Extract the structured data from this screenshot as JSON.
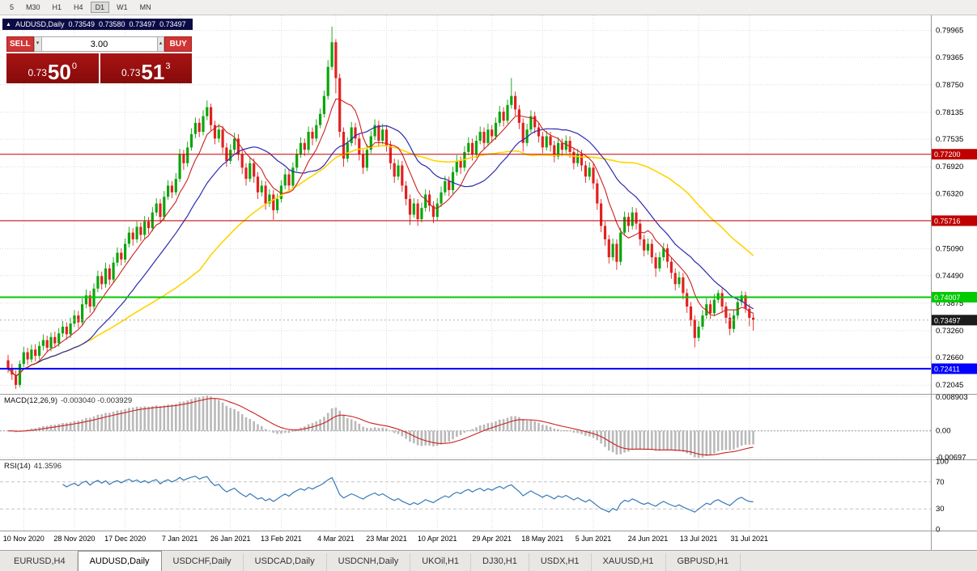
{
  "toolbar": {
    "periods": [
      {
        "label": "5",
        "active": false
      },
      {
        "label": "M30",
        "active": false
      },
      {
        "label": "H1",
        "active": false
      },
      {
        "label": "H4",
        "active": false
      },
      {
        "label": "D1",
        "active": true
      },
      {
        "label": "W1",
        "active": false
      },
      {
        "label": "MN",
        "active": false
      }
    ]
  },
  "chart": {
    "symbol": "AUDUSD,Daily",
    "open": "0.73549",
    "high": "0.73580",
    "low": "0.73497",
    "close": "0.73497"
  },
  "icons": {
    "title_arrow": "▲",
    "vol_down": "▾",
    "vol_up": "▴"
  },
  "trade_panel": {
    "sell_label": "SELL",
    "buy_label": "BUY",
    "volume": "3.00",
    "sell_price_main": "0.73",
    "sell_price_big": "50",
    "sell_price_sup": "0",
    "buy_price_main": "0.73",
    "buy_price_big": "51",
    "buy_price_sup": "3"
  },
  "price_axis": [
    "0.79965",
    "0.79365",
    "0.78750",
    "0.78135",
    "0.77535",
    "0.76920",
    "0.76320",
    "0.75705",
    "0.75090",
    "0.74490",
    "0.73875",
    "0.73260",
    "0.72660",
    "0.72045"
  ],
  "hlines": [
    {
      "price": 0.772,
      "label": "0.77200",
      "color": "#c00000",
      "width": 1
    },
    {
      "price": 0.75716,
      "label": "0.75716",
      "color": "#c00000",
      "width": 1
    },
    {
      "price": 0.74007,
      "label": "0.74007",
      "color": "#00ca00",
      "width": 2
    },
    {
      "price": 0.72411,
      "label": "0.72411",
      "color": "#0000ff",
      "width": 2
    }
  ],
  "current_price": {
    "price": 0.73497,
    "label": "0.73497",
    "box_color": "#1c1c1c"
  },
  "macd": {
    "title": "MACD(12,26,9)",
    "values": "-0.003040 -0.003929",
    "params": [
      12,
      26,
      9
    ],
    "axis": [
      {
        "text": "0.008903",
        "value": 0.008903
      },
      {
        "text": "0.00",
        "value": 0
      },
      {
        "text": "-0.00697",
        "value": -0.00697
      }
    ]
  },
  "rsi": {
    "title": "RSI(14)",
    "value": "41.3596",
    "period": 14,
    "levels": [
      70,
      30
    ],
    "axis": [
      {
        "text": "100",
        "value": 100
      },
      {
        "text": "70",
        "value": 70
      },
      {
        "text": "30",
        "value": 30
      },
      {
        "text": "0",
        "value": 0
      }
    ]
  },
  "colors": {
    "up": "#0ba50b",
    "down": "#e22020",
    "ma_fast": "#cc2020",
    "ma_mid": "#2c2cb0",
    "ma_slow": "#ffd400",
    "macd_hist": "#b9b9b9",
    "macd_signal": "#cc2020",
    "rsi_line": "#3579b8"
  },
  "tabs": [
    {
      "label": "EURUSD,H4",
      "active": false
    },
    {
      "label": "AUDUSD,Daily",
      "active": true
    },
    {
      "label": "USDCHF,Daily",
      "active": false
    },
    {
      "label": "USDCAD,Daily",
      "active": false
    },
    {
      "label": "USDCNH,Daily",
      "active": false
    },
    {
      "label": "UKOil,H1",
      "active": false
    },
    {
      "label": "DJ30,H1",
      "active": false
    },
    {
      "label": "USDX,H1",
      "active": false
    },
    {
      "label": "XAUUSD,H1",
      "active": false
    },
    {
      "label": "GBPUSD,H1",
      "active": false
    }
  ],
  "chart_data": {
    "type": "candlestick",
    "symbol": "AUDUSD",
    "timeframe": "Daily",
    "y_range": [
      0.7185,
      0.803
    ],
    "ma_periods": {
      "fast": 8,
      "mid": 21,
      "slow": 50
    },
    "x_ticks": [
      {
        "label": "10 Nov 2020",
        "day": 4
      },
      {
        "label": "28 Nov 2020",
        "day": 17
      },
      {
        "label": "17 Dec 2020",
        "day": 30
      },
      {
        "label": "7 Jan 2021",
        "day": 44
      },
      {
        "label": "26 Jan 2021",
        "day": 57
      },
      {
        "label": "13 Feb 2021",
        "day": 70
      },
      {
        "label": "4 Mar 2021",
        "day": 84
      },
      {
        "label": "23 Mar 2021",
        "day": 97
      },
      {
        "label": "10 Apr 2021",
        "day": 110
      },
      {
        "label": "29 Apr 2021",
        "day": 124
      },
      {
        "label": "18 May 2021",
        "day": 137
      },
      {
        "label": "5 Jun 2021",
        "day": 150
      },
      {
        "label": "24 Jun 2021",
        "day": 164
      },
      {
        "label": "13 Jul 2021",
        "day": 177
      },
      {
        "label": "31 Jul 2021",
        "day": 190
      }
    ],
    "candles": [
      [
        0.726,
        0.7272,
        0.7232,
        0.724
      ],
      [
        0.724,
        0.7252,
        0.7216,
        0.7228
      ],
      [
        0.7228,
        0.7238,
        0.7196,
        0.7205
      ],
      [
        0.7205,
        0.726,
        0.72,
        0.7252
      ],
      [
        0.7252,
        0.729,
        0.7245,
        0.7278
      ],
      [
        0.7278,
        0.7288,
        0.725,
        0.7262
      ],
      [
        0.7262,
        0.7295,
        0.7255,
        0.7284
      ],
      [
        0.7284,
        0.7296,
        0.7258,
        0.727
      ],
      [
        0.727,
        0.7302,
        0.7262,
        0.7292
      ],
      [
        0.7292,
        0.7318,
        0.7282,
        0.7305
      ],
      [
        0.7305,
        0.7315,
        0.7278,
        0.7288
      ],
      [
        0.7288,
        0.7322,
        0.728,
        0.7312
      ],
      [
        0.7312,
        0.7324,
        0.7288,
        0.7298
      ],
      [
        0.7298,
        0.7332,
        0.729,
        0.732
      ],
      [
        0.732,
        0.7348,
        0.7312,
        0.7335
      ],
      [
        0.7335,
        0.7345,
        0.7306,
        0.7318
      ],
      [
        0.7318,
        0.7355,
        0.731,
        0.7342
      ],
      [
        0.7342,
        0.7372,
        0.7334,
        0.736
      ],
      [
        0.736,
        0.737,
        0.7332,
        0.7345
      ],
      [
        0.7345,
        0.7398,
        0.7338,
        0.7385
      ],
      [
        0.7385,
        0.7418,
        0.7376,
        0.7405
      ],
      [
        0.7405,
        0.7415,
        0.7366,
        0.738
      ],
      [
        0.738,
        0.7432,
        0.7372,
        0.742
      ],
      [
        0.742,
        0.746,
        0.7412,
        0.7448
      ],
      [
        0.7448,
        0.7458,
        0.7418,
        0.743
      ],
      [
        0.743,
        0.7478,
        0.7422,
        0.7465
      ],
      [
        0.7465,
        0.7474,
        0.7428,
        0.744
      ],
      [
        0.744,
        0.749,
        0.7432,
        0.7478
      ],
      [
        0.7478,
        0.7512,
        0.747,
        0.75
      ],
      [
        0.75,
        0.751,
        0.7472,
        0.7485
      ],
      [
        0.7485,
        0.7532,
        0.7478,
        0.752
      ],
      [
        0.752,
        0.7558,
        0.7512,
        0.7545
      ],
      [
        0.7545,
        0.7555,
        0.7516,
        0.753
      ],
      [
        0.753,
        0.757,
        0.7522,
        0.7558
      ],
      [
        0.7558,
        0.7568,
        0.7526,
        0.754
      ],
      [
        0.754,
        0.7582,
        0.7532,
        0.757
      ],
      [
        0.757,
        0.758,
        0.7542,
        0.7555
      ],
      [
        0.7555,
        0.7602,
        0.7548,
        0.759
      ],
      [
        0.759,
        0.7622,
        0.7582,
        0.761
      ],
      [
        0.761,
        0.762,
        0.7566,
        0.758
      ],
      [
        0.758,
        0.7638,
        0.7572,
        0.7625
      ],
      [
        0.7625,
        0.7662,
        0.7618,
        0.765
      ],
      [
        0.765,
        0.766,
        0.7622,
        0.7635
      ],
      [
        0.7635,
        0.7678,
        0.7628,
        0.7665
      ],
      [
        0.7665,
        0.7732,
        0.7658,
        0.772
      ],
      [
        0.772,
        0.773,
        0.7685,
        0.77
      ],
      [
        0.77,
        0.7748,
        0.7692,
        0.7735
      ],
      [
        0.7735,
        0.7778,
        0.7728,
        0.7765
      ],
      [
        0.7765,
        0.7802,
        0.7756,
        0.779
      ],
      [
        0.779,
        0.78,
        0.7758,
        0.777
      ],
      [
        0.777,
        0.7818,
        0.7762,
        0.7805
      ],
      [
        0.7805,
        0.784,
        0.7796,
        0.7825
      ],
      [
        0.7825,
        0.7833,
        0.7772,
        0.7785
      ],
      [
        0.7785,
        0.7795,
        0.7742,
        0.7755
      ],
      [
        0.7755,
        0.7788,
        0.7746,
        0.7775
      ],
      [
        0.7775,
        0.7783,
        0.7722,
        0.7735
      ],
      [
        0.7735,
        0.7745,
        0.7692,
        0.7705
      ],
      [
        0.7705,
        0.7742,
        0.7698,
        0.773
      ],
      [
        0.773,
        0.7768,
        0.7722,
        0.7755
      ],
      [
        0.7755,
        0.7765,
        0.7706,
        0.772
      ],
      [
        0.772,
        0.773,
        0.7676,
        0.769
      ],
      [
        0.769,
        0.77,
        0.765,
        0.7665
      ],
      [
        0.7665,
        0.7712,
        0.7658,
        0.77
      ],
      [
        0.77,
        0.771,
        0.7656,
        0.767
      ],
      [
        0.767,
        0.768,
        0.762,
        0.7635
      ],
      [
        0.7635,
        0.7662,
        0.7626,
        0.765
      ],
      [
        0.765,
        0.766,
        0.7596,
        0.761
      ],
      [
        0.761,
        0.7642,
        0.7602,
        0.763
      ],
      [
        0.763,
        0.764,
        0.7574,
        0.7595
      ],
      [
        0.7595,
        0.7632,
        0.7588,
        0.762
      ],
      [
        0.762,
        0.7662,
        0.7612,
        0.765
      ],
      [
        0.765,
        0.7688,
        0.7642,
        0.7675
      ],
      [
        0.7675,
        0.7685,
        0.7636,
        0.765
      ],
      [
        0.765,
        0.7702,
        0.7642,
        0.769
      ],
      [
        0.769,
        0.7732,
        0.7682,
        0.772
      ],
      [
        0.772,
        0.7758,
        0.7712,
        0.7745
      ],
      [
        0.7745,
        0.7755,
        0.7716,
        0.773
      ],
      [
        0.773,
        0.7782,
        0.7722,
        0.777
      ],
      [
        0.777,
        0.778,
        0.774,
        0.7755
      ],
      [
        0.7755,
        0.7798,
        0.7748,
        0.7785
      ],
      [
        0.7785,
        0.7822,
        0.7778,
        0.781
      ],
      [
        0.781,
        0.7862,
        0.7802,
        0.785
      ],
      [
        0.785,
        0.793,
        0.7842,
        0.7915
      ],
      [
        0.7915,
        0.8005,
        0.7908,
        0.797
      ],
      [
        0.797,
        0.7977,
        0.7856,
        0.789
      ],
      [
        0.789,
        0.79,
        0.7758,
        0.777
      ],
      [
        0.777,
        0.778,
        0.7692,
        0.771
      ],
      [
        0.771,
        0.7758,
        0.7702,
        0.7745
      ],
      [
        0.7745,
        0.7792,
        0.7738,
        0.778
      ],
      [
        0.778,
        0.779,
        0.774,
        0.7755
      ],
      [
        0.7755,
        0.7765,
        0.7706,
        0.772
      ],
      [
        0.772,
        0.773,
        0.7676,
        0.769
      ],
      [
        0.769,
        0.7742,
        0.7682,
        0.773
      ],
      [
        0.773,
        0.7772,
        0.7722,
        0.776
      ],
      [
        0.776,
        0.7798,
        0.7752,
        0.7785
      ],
      [
        0.7785,
        0.7795,
        0.7736,
        0.775
      ],
      [
        0.775,
        0.7788,
        0.7742,
        0.7775
      ],
      [
        0.7775,
        0.7785,
        0.7726,
        0.774
      ],
      [
        0.774,
        0.775,
        0.7686,
        0.77
      ],
      [
        0.77,
        0.771,
        0.7656,
        0.767
      ],
      [
        0.767,
        0.7708,
        0.7662,
        0.7695
      ],
      [
        0.7695,
        0.7705,
        0.7636,
        0.765
      ],
      [
        0.765,
        0.766,
        0.7606,
        0.762
      ],
      [
        0.762,
        0.763,
        0.7562,
        0.7585
      ],
      [
        0.7585,
        0.7622,
        0.7578,
        0.761
      ],
      [
        0.761,
        0.762,
        0.756,
        0.7575
      ],
      [
        0.7575,
        0.7612,
        0.7568,
        0.76
      ],
      [
        0.76,
        0.7642,
        0.7592,
        0.763
      ],
      [
        0.763,
        0.764,
        0.7592,
        0.7605
      ],
      [
        0.7605,
        0.7615,
        0.7566,
        0.758
      ],
      [
        0.758,
        0.7622,
        0.7572,
        0.761
      ],
      [
        0.761,
        0.7648,
        0.7602,
        0.7635
      ],
      [
        0.7635,
        0.7672,
        0.7628,
        0.766
      ],
      [
        0.766,
        0.767,
        0.7626,
        0.764
      ],
      [
        0.764,
        0.7692,
        0.7632,
        0.768
      ],
      [
        0.768,
        0.7718,
        0.7672,
        0.7705
      ],
      [
        0.7705,
        0.7715,
        0.7676,
        0.769
      ],
      [
        0.769,
        0.7738,
        0.7682,
        0.7725
      ],
      [
        0.7725,
        0.7758,
        0.7718,
        0.7745
      ],
      [
        0.7745,
        0.7755,
        0.7706,
        0.772
      ],
      [
        0.772,
        0.7762,
        0.7712,
        0.775
      ],
      [
        0.775,
        0.7782,
        0.7742,
        0.777
      ],
      [
        0.777,
        0.778,
        0.7732,
        0.7745
      ],
      [
        0.7745,
        0.7788,
        0.7738,
        0.7775
      ],
      [
        0.7775,
        0.7785,
        0.7746,
        0.776
      ],
      [
        0.776,
        0.7802,
        0.7752,
        0.779
      ],
      [
        0.779,
        0.7828,
        0.7782,
        0.7815
      ],
      [
        0.7815,
        0.7825,
        0.7782,
        0.7795
      ],
      [
        0.7795,
        0.7842,
        0.7788,
        0.783
      ],
      [
        0.783,
        0.789,
        0.7822,
        0.785
      ],
      [
        0.785,
        0.786,
        0.7806,
        0.782
      ],
      [
        0.782,
        0.783,
        0.7776,
        0.779
      ],
      [
        0.779,
        0.78,
        0.7726,
        0.7745
      ],
      [
        0.7745,
        0.7788,
        0.7738,
        0.7775
      ],
      [
        0.7775,
        0.7818,
        0.7768,
        0.7805
      ],
      [
        0.7805,
        0.7815,
        0.7766,
        0.778
      ],
      [
        0.778,
        0.779,
        0.7746,
        0.776
      ],
      [
        0.776,
        0.777,
        0.7722,
        0.7735
      ],
      [
        0.7735,
        0.7772,
        0.7728,
        0.776
      ],
      [
        0.776,
        0.777,
        0.7726,
        0.774
      ],
      [
        0.774,
        0.775,
        0.7702,
        0.7715
      ],
      [
        0.7715,
        0.7758,
        0.7708,
        0.7745
      ],
      [
        0.7745,
        0.7755,
        0.7716,
        0.773
      ],
      [
        0.773,
        0.7762,
        0.7722,
        0.775
      ],
      [
        0.775,
        0.776,
        0.7712,
        0.7725
      ],
      [
        0.7725,
        0.7735,
        0.7686,
        0.77
      ],
      [
        0.77,
        0.7732,
        0.7692,
        0.772
      ],
      [
        0.772,
        0.773,
        0.7682,
        0.7695
      ],
      [
        0.7695,
        0.7705,
        0.7656,
        0.767
      ],
      [
        0.767,
        0.7702,
        0.7662,
        0.769
      ],
      [
        0.769,
        0.77,
        0.7642,
        0.7655
      ],
      [
        0.7655,
        0.7665,
        0.7596,
        0.761
      ],
      [
        0.761,
        0.762,
        0.7546,
        0.756
      ],
      [
        0.756,
        0.757,
        0.7516,
        0.753
      ],
      [
        0.753,
        0.754,
        0.7476,
        0.749
      ],
      [
        0.749,
        0.7532,
        0.7482,
        0.752
      ],
      [
        0.752,
        0.753,
        0.7462,
        0.748
      ],
      [
        0.748,
        0.7556,
        0.7472,
        0.7545
      ],
      [
        0.7545,
        0.7592,
        0.7538,
        0.758
      ],
      [
        0.758,
        0.759,
        0.7546,
        0.756
      ],
      [
        0.756,
        0.7602,
        0.7552,
        0.759
      ],
      [
        0.759,
        0.76,
        0.7552,
        0.7565
      ],
      [
        0.7565,
        0.7575,
        0.7516,
        0.753
      ],
      [
        0.753,
        0.754,
        0.7492,
        0.7505
      ],
      [
        0.7505,
        0.7532,
        0.7496,
        0.752
      ],
      [
        0.752,
        0.753,
        0.7476,
        0.749
      ],
      [
        0.749,
        0.75,
        0.7446,
        0.7465
      ],
      [
        0.7465,
        0.7502,
        0.7458,
        0.749
      ],
      [
        0.749,
        0.7522,
        0.7482,
        0.751
      ],
      [
        0.751,
        0.752,
        0.7466,
        0.748
      ],
      [
        0.748,
        0.749,
        0.7442,
        0.7455
      ],
      [
        0.7455,
        0.7465,
        0.7416,
        0.743
      ],
      [
        0.743,
        0.7458,
        0.7422,
        0.7445
      ],
      [
        0.7445,
        0.7455,
        0.7396,
        0.741
      ],
      [
        0.741,
        0.742,
        0.7366,
        0.738
      ],
      [
        0.738,
        0.739,
        0.7336,
        0.735
      ],
      [
        0.735,
        0.736,
        0.7289,
        0.731
      ],
      [
        0.731,
        0.7348,
        0.7302,
        0.7335
      ],
      [
        0.7335,
        0.7372,
        0.7328,
        0.736
      ],
      [
        0.736,
        0.7398,
        0.7352,
        0.7385
      ],
      [
        0.7385,
        0.7395,
        0.7352,
        0.7365
      ],
      [
        0.7365,
        0.7408,
        0.7358,
        0.7395
      ],
      [
        0.7395,
        0.7417,
        0.7388,
        0.741
      ],
      [
        0.741,
        0.742,
        0.7366,
        0.738
      ],
      [
        0.738,
        0.739,
        0.7342,
        0.7355
      ],
      [
        0.7355,
        0.7365,
        0.7316,
        0.733
      ],
      [
        0.733,
        0.7372,
        0.7322,
        0.736
      ],
      [
        0.736,
        0.7402,
        0.7352,
        0.739
      ],
      [
        0.739,
        0.7415,
        0.7382,
        0.7405
      ],
      [
        0.7405,
        0.7413,
        0.7366,
        0.7375
      ],
      [
        0.7375,
        0.7385,
        0.7336,
        0.7355
      ],
      [
        0.7355,
        0.7366,
        0.7326,
        0.735
      ]
    ]
  }
}
